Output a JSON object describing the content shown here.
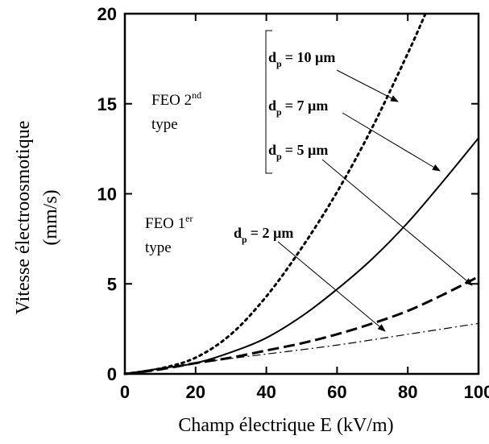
{
  "chart_data": {
    "type": "line",
    "xlabel": "Champ électrique E (kV/m)",
    "ylabel_line1": "Vitesse électroosmotique",
    "ylabel_line2": "(mm/s)",
    "xlim": [
      0,
      100
    ],
    "ylim": [
      0,
      20
    ],
    "x_ticks": [
      "0",
      "20",
      "40",
      "60",
      "80",
      "100"
    ],
    "y_ticks": [
      "0",
      "5",
      "10",
      "15",
      "20"
    ],
    "grid": false,
    "series": [
      {
        "label": "dp = 10 µm",
        "style": "dotted",
        "x": [
          0,
          10,
          20,
          30,
          40,
          50,
          60,
          70,
          80,
          85
        ],
        "y": [
          0,
          0.3,
          0.9,
          2.2,
          4.3,
          7.0,
          10.1,
          13.7,
          17.8,
          20.0
        ]
      },
      {
        "label": "dp = 7 µm",
        "style": "solid",
        "x": [
          0,
          10,
          20,
          30,
          40,
          50,
          60,
          70,
          80,
          90,
          100
        ],
        "y": [
          0,
          0.3,
          0.6,
          1.2,
          2.0,
          3.2,
          4.7,
          6.4,
          8.4,
          10.7,
          13.1
        ]
      },
      {
        "label": "dp = 5 µm",
        "style": "dashed",
        "x": [
          0,
          10,
          20,
          30,
          40,
          50,
          60,
          70,
          80,
          90,
          100
        ],
        "y": [
          0,
          0.25,
          0.6,
          0.9,
          1.3,
          1.7,
          2.2,
          2.8,
          3.5,
          4.4,
          5.4
        ]
      },
      {
        "label": "dp = 2 µm",
        "style": "dashdot",
        "x": [
          0,
          20,
          40,
          60,
          80,
          100
        ],
        "y": [
          0,
          0.6,
          1.1,
          1.6,
          2.2,
          2.8
        ]
      }
    ],
    "annotations": {
      "feo2_main": "FEO 2",
      "feo2_sup": "nd",
      "feo2_type": "type",
      "feo1_main": "FEO 1",
      "feo1_sup": "er",
      "feo1_type": "type",
      "d_letter": "d",
      "d_sub": "p",
      "dp10_value": "= 10 µm",
      "dp7_value": "= 7 µm",
      "dp5_value": "= 5 µm",
      "dp2_value": "= 2 µm"
    }
  }
}
